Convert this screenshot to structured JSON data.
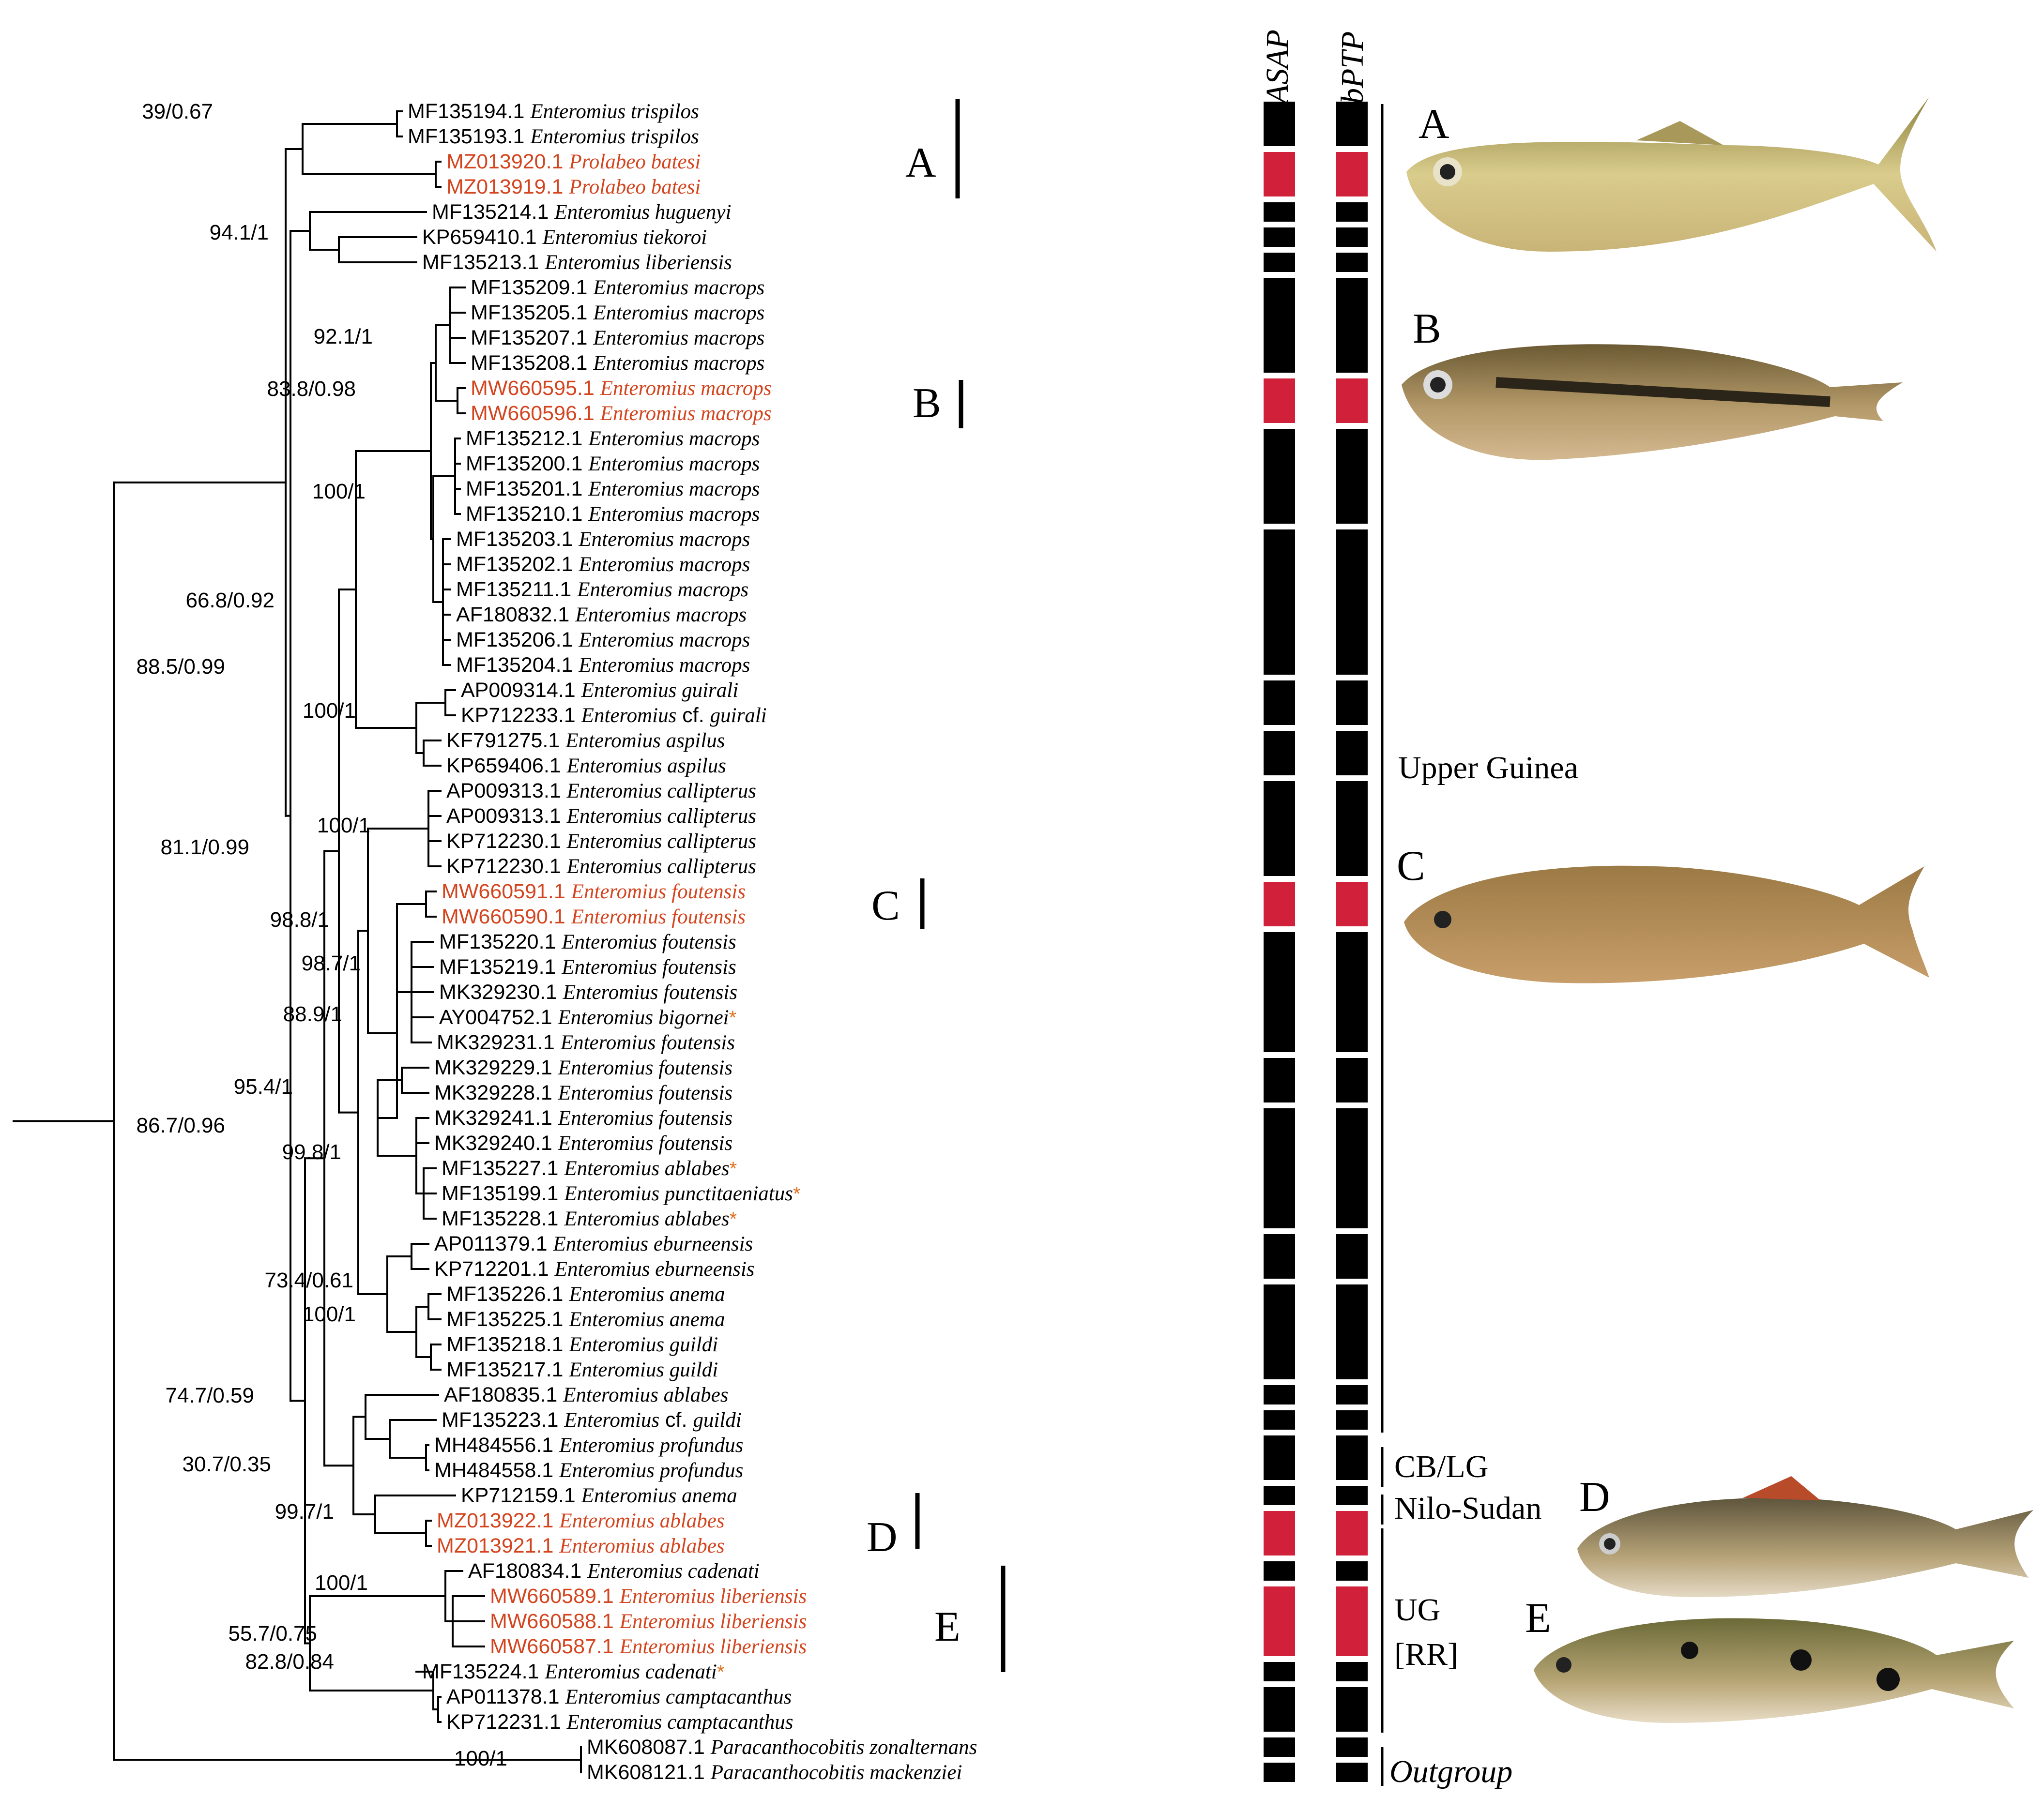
{
  "colors": {
    "highlight": "#d4451f",
    "delimit_red": "#d0203a",
    "black": "#000000",
    "star": "#e07020"
  },
  "headers": {
    "asap": "ASAP",
    "bptp": "bPTP"
  },
  "taxa": [
    {
      "acc": "MF135194.1",
      "sp": "Enteromius trispilos",
      "hl": false,
      "star": false
    },
    {
      "acc": "MF135193.1",
      "sp": "Enteromius trispilos",
      "hl": false,
      "star": false
    },
    {
      "acc": "MZ013920.1",
      "sp": "Prolabeo batesi",
      "hl": true,
      "star": false
    },
    {
      "acc": "MZ013919.1",
      "sp": "Prolabeo batesi",
      "hl": true,
      "star": false
    },
    {
      "acc": "MF135214.1",
      "sp": "Enteromius huguenyi",
      "hl": false,
      "star": false
    },
    {
      "acc": "KP659410.1",
      "sp": "Enteromius tiekoroi",
      "hl": false,
      "star": false
    },
    {
      "acc": "MF135213.1",
      "sp": "Enteromius liberiensis",
      "hl": false,
      "star": false
    },
    {
      "acc": "MF135209.1",
      "sp": "Enteromius macrops",
      "hl": false,
      "star": false
    },
    {
      "acc": "MF135205.1",
      "sp": "Enteromius macrops",
      "hl": false,
      "star": false
    },
    {
      "acc": "MF135207.1",
      "sp": "Enteromius macrops",
      "hl": false,
      "star": false
    },
    {
      "acc": "MF135208.1",
      "sp": "Enteromius macrops",
      "hl": false,
      "star": false
    },
    {
      "acc": "MW660595.1",
      "sp": "Enteromius macrops",
      "hl": true,
      "star": false
    },
    {
      "acc": "MW660596.1",
      "sp": "Enteromius macrops",
      "hl": true,
      "star": false
    },
    {
      "acc": "MF135212.1",
      "sp": "Enteromius macrops",
      "hl": false,
      "star": false
    },
    {
      "acc": "MF135200.1",
      "sp": "Enteromius macrops",
      "hl": false,
      "star": false
    },
    {
      "acc": "MF135201.1",
      "sp": "Enteromius macrops",
      "hl": false,
      "star": false
    },
    {
      "acc": "MF135210.1",
      "sp": "Enteromius macrops",
      "hl": false,
      "star": false
    },
    {
      "acc": "MF135203.1",
      "sp": "Enteromius macrops",
      "hl": false,
      "star": false
    },
    {
      "acc": "MF135202.1",
      "sp": "Enteromius macrops",
      "hl": false,
      "star": false
    },
    {
      "acc": "MF135211.1",
      "sp": "Enteromius macrops",
      "hl": false,
      "star": false
    },
    {
      "acc": "AF180832.1",
      "sp": "Enteromius macrops",
      "hl": false,
      "star": false
    },
    {
      "acc": "MF135206.1",
      "sp": "Enteromius macrops",
      "hl": false,
      "star": false
    },
    {
      "acc": "MF135204.1",
      "sp": "Enteromius macrops",
      "hl": false,
      "star": false
    },
    {
      "acc": "AP009314.1",
      "sp": "Enteromius guirali",
      "hl": false,
      "star": false
    },
    {
      "acc": "KP712233.1",
      "sp": "Enteromius",
      "cf": "cf.",
      "sp2": "guirali",
      "hl": false,
      "star": false
    },
    {
      "acc": "KF791275.1",
      "sp": "Enteromius aspilus",
      "hl": false,
      "star": false
    },
    {
      "acc": "KP659406.1",
      "sp": "Enteromius aspilus",
      "hl": false,
      "star": false
    },
    {
      "acc": "AP009313.1",
      "sp": "Enteromius callipterus",
      "hl": false,
      "star": false
    },
    {
      "acc": "AP009313.1",
      "sp": "Enteromius callipterus",
      "hl": false,
      "star": false
    },
    {
      "acc": "KP712230.1",
      "sp": "Enteromius callipterus",
      "hl": false,
      "star": false
    },
    {
      "acc": "KP712230.1",
      "sp": "Enteromius callipterus",
      "hl": false,
      "star": false
    },
    {
      "acc": "MW660591.1",
      "sp": "Enteromius foutensis",
      "hl": true,
      "star": false
    },
    {
      "acc": "MW660590.1",
      "sp": "Enteromius foutensis",
      "hl": true,
      "star": false
    },
    {
      "acc": "MF135220.1",
      "sp": "Enteromius foutensis",
      "hl": false,
      "star": false
    },
    {
      "acc": "MF135219.1",
      "sp": "Enteromius foutensis",
      "hl": false,
      "star": false
    },
    {
      "acc": "MK329230.1",
      "sp": "Enteromius foutensis",
      "hl": false,
      "star": false
    },
    {
      "acc": "AY004752.1",
      "sp": "Enteromius bigornei",
      "hl": false,
      "star": true
    },
    {
      "acc": "MK329231.1",
      "sp": "Enteromius foutensis",
      "hl": false,
      "star": false
    },
    {
      "acc": "MK329229.1",
      "sp": "Enteromius foutensis",
      "hl": false,
      "star": false
    },
    {
      "acc": "MK329228.1",
      "sp": "Enteromius foutensis",
      "hl": false,
      "star": false
    },
    {
      "acc": "MK329241.1",
      "sp": "Enteromius foutensis",
      "hl": false,
      "star": false
    },
    {
      "acc": "MK329240.1",
      "sp": "Enteromius foutensis",
      "hl": false,
      "star": false
    },
    {
      "acc": "MF135227.1",
      "sp": "Enteromius ablabes",
      "hl": false,
      "star": true
    },
    {
      "acc": "MF135199.1",
      "sp": "Enteromius punctitaeniatus",
      "hl": false,
      "star": true
    },
    {
      "acc": "MF135228.1",
      "sp": "Enteromius ablabes",
      "hl": false,
      "star": true
    },
    {
      "acc": "AP011379.1",
      "sp": "Enteromius eburneensis",
      "hl": false,
      "star": false
    },
    {
      "acc": "KP712201.1",
      "sp": "Enteromius eburneensis",
      "hl": false,
      "star": false
    },
    {
      "acc": "MF135226.1",
      "sp": "Enteromius anema",
      "hl": false,
      "star": false
    },
    {
      "acc": "MF135225.1",
      "sp": "Enteromius anema",
      "hl": false,
      "star": false
    },
    {
      "acc": "MF135218.1",
      "sp": "Enteromius guildi",
      "hl": false,
      "star": false
    },
    {
      "acc": "MF135217.1",
      "sp": "Enteromius guildi",
      "hl": false,
      "star": false
    },
    {
      "acc": "AF180835.1",
      "sp": "Enteromius ablabes",
      "hl": false,
      "star": false
    },
    {
      "acc": "MF135223.1",
      "sp": "Enteromius",
      "cf": "cf.",
      "sp2": "guildi",
      "hl": false,
      "star": false
    },
    {
      "acc": "MH484556.1",
      "sp": "Enteromius profundus",
      "hl": false,
      "star": false
    },
    {
      "acc": "MH484558.1",
      "sp": "Enteromius profundus",
      "hl": false,
      "star": false
    },
    {
      "acc": "KP712159.1",
      "sp": "Enteromius anema",
      "hl": false,
      "star": false
    },
    {
      "acc": "MZ013922.1",
      "sp": "Enteromius ablabes",
      "hl": true,
      "star": false
    },
    {
      "acc": "MZ013921.1",
      "sp": "Enteromius ablabes",
      "hl": true,
      "star": false
    },
    {
      "acc": "AF180834.1",
      "sp": "Enteromius cadenati",
      "hl": false,
      "star": false
    },
    {
      "acc": "MW660589.1",
      "sp": "Enteromius liberiensis",
      "hl": true,
      "star": false
    },
    {
      "acc": "MW660588.1",
      "sp": "Enteromius liberiensis",
      "hl": true,
      "star": false
    },
    {
      "acc": "MW660587.1",
      "sp": "Enteromius liberiensis",
      "hl": true,
      "star": false
    },
    {
      "acc": "MF135224.1",
      "sp": "Enteromius cadenati",
      "hl": false,
      "star": true
    },
    {
      "acc": "AP011378.1",
      "sp": "Enteromius camptacanthus",
      "hl": false,
      "star": false
    },
    {
      "acc": "KP712231.1",
      "sp": "Enteromius camptacanthus",
      "hl": false,
      "star": false
    },
    {
      "acc": "MK608087.1",
      "sp": "Paracanthocobitis zonalternans",
      "hl": false,
      "star": false
    },
    {
      "acc": "MK608121.1",
      "sp": "Paracanthocobitis mackenziei",
      "hl": false,
      "star": false
    }
  ],
  "supports": [
    "39/0.67",
    "94.1/1",
    "92.1/1",
    "83.8/0.98",
    "100/1",
    "66.8/0.92",
    "88.5/0.99",
    "100/1",
    "100/1",
    "81.1/0.99",
    "98.8/1",
    "98.7/1",
    "88.9/1",
    "95.4/1",
    "86.7/0.96",
    "99.8/1",
    "73.4/0.61",
    "100/1",
    "74.7/0.59",
    "30.7/0.35",
    "99.7/1",
    "100/1",
    "55.7/0.75",
    "82.8/0.84",
    "100/1",
    "100/1"
  ],
  "clades": [
    "A",
    "B",
    "C",
    "D",
    "E"
  ],
  "fish_labels": [
    "A",
    "B",
    "C",
    "D",
    "E"
  ],
  "delimitation_blocks": [
    {
      "rows": [
        0,
        1
      ],
      "red": false
    },
    {
      "rows": [
        2,
        3
      ],
      "red": true
    },
    {
      "rows": [
        4,
        4
      ],
      "red": false
    },
    {
      "rows": [
        5,
        5
      ],
      "red": false
    },
    {
      "rows": [
        6,
        6
      ],
      "red": false
    },
    {
      "rows": [
        7,
        10
      ],
      "red": false
    },
    {
      "rows": [
        11,
        12
      ],
      "red": true
    },
    {
      "rows": [
        13,
        16
      ],
      "red": false
    },
    {
      "rows": [
        17,
        22
      ],
      "red": false
    },
    {
      "rows": [
        23,
        24
      ],
      "red": false
    },
    {
      "rows": [
        25,
        26
      ],
      "red": false
    },
    {
      "rows": [
        27,
        30
      ],
      "red": false
    },
    {
      "rows": [
        31,
        32
      ],
      "red": true
    },
    {
      "rows": [
        33,
        37
      ],
      "red": false
    },
    {
      "rows": [
        38,
        39
      ],
      "red": false
    },
    {
      "rows": [
        40,
        44
      ],
      "red": false
    },
    {
      "rows": [
        45,
        46
      ],
      "red": false
    },
    {
      "rows": [
        47,
        50
      ],
      "red": false
    },
    {
      "rows": [
        51,
        51
      ],
      "red": false
    },
    {
      "rows": [
        52,
        52
      ],
      "red": false
    },
    {
      "rows": [
        53,
        54
      ],
      "red": false
    },
    {
      "rows": [
        55,
        55
      ],
      "red": false
    },
    {
      "rows": [
        56,
        57
      ],
      "red": true
    },
    {
      "rows": [
        58,
        58
      ],
      "red": false
    },
    {
      "rows": [
        59,
        61
      ],
      "red": true
    },
    {
      "rows": [
        62,
        62
      ],
      "red": false
    },
    {
      "rows": [
        63,
        64
      ],
      "red": false
    },
    {
      "rows": [
        65,
        65
      ],
      "red": false
    },
    {
      "rows": [
        66,
        66
      ],
      "red": false
    }
  ],
  "regions": {
    "upper_guinea": "Upper Guinea",
    "cb_lg": "CB/LG",
    "nilo_sudan": "Nilo-Sudan",
    "ug": "UG",
    "rr": "[RR]",
    "outgroup": "Outgroup"
  }
}
